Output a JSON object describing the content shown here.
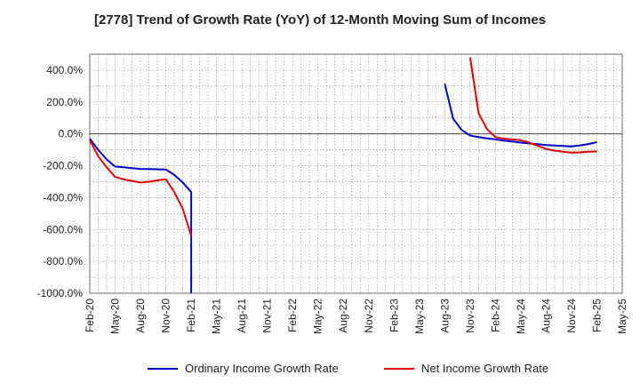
{
  "chart_data": {
    "type": "line",
    "title": "[2778]  Trend of Growth Rate (YoY) of 12-Month Moving Sum of Incomes",
    "xlabel": "",
    "ylabel": "",
    "ylim": [
      -1000,
      500
    ],
    "yticks": [
      400,
      200,
      0,
      -200,
      -400,
      -600,
      -800,
      -1000
    ],
    "ytick_labels": [
      "400.0%",
      "200.0%",
      "0.0%",
      "-200.0%",
      "-400.0%",
      "-600.0%",
      "-800.0%",
      "-1000.0%"
    ],
    "x_categories": [
      "Feb-20",
      "May-20",
      "Aug-20",
      "Nov-20",
      "Feb-21",
      "May-21",
      "Aug-21",
      "Nov-21",
      "Feb-22",
      "May-22",
      "Aug-22",
      "Nov-22",
      "Feb-23",
      "May-23",
      "Aug-23",
      "Nov-23",
      "Feb-24",
      "May-24",
      "Aug-24",
      "Nov-24",
      "Feb-25",
      "May-25"
    ],
    "grid": true,
    "legend_position": "bottom",
    "series": [
      {
        "name": "Ordinary Income Growth Rate",
        "color": "#0000cc",
        "segments": [
          {
            "x": [
              "Feb-20",
              "Mar-20",
              "Apr-20",
              "May-20",
              "Jun-20",
              "Jul-20",
              "Aug-20",
              "Sep-20",
              "Oct-20",
              "Nov-20",
              "Dec-20",
              "Jan-21",
              "Feb-21",
              "Feb-21"
            ],
            "y": [
              -30,
              -100,
              -160,
              -205,
              -210,
              -215,
              -220,
              -221,
              -222,
              -223,
              -258,
              -305,
              -365,
              -1000
            ]
          },
          {
            "x": [
              "Aug-23",
              "Sep-23",
              "Oct-23",
              "Nov-23",
              "Dec-23",
              "Jan-24",
              "Feb-24",
              "Mar-24",
              "Apr-24",
              "May-24",
              "Jun-24",
              "Jul-24",
              "Aug-24",
              "Sep-24",
              "Oct-24",
              "Nov-24",
              "Dec-24",
              "Jan-25",
              "Feb-25"
            ],
            "y": [
              315,
              95,
              25,
              -10,
              -20,
              -28,
              -35,
              -42,
              -48,
              -55,
              -60,
              -65,
              -70,
              -73,
              -76,
              -79,
              -72,
              -64,
              -52
            ]
          }
        ]
      },
      {
        "name": "Net Income Growth Rate",
        "color": "#e00000",
        "segments": [
          {
            "x": [
              "Feb-20",
              "Mar-20",
              "Apr-20",
              "May-20",
              "Jun-20",
              "Jul-20",
              "Aug-20",
              "Sep-20",
              "Oct-20",
              "Nov-20",
              "Dec-20",
              "Jan-21",
              "Feb-21"
            ],
            "y": [
              -40,
              -140,
              -210,
              -270,
              -285,
              -295,
              -305,
              -300,
              -292,
              -285,
              -365,
              -470,
              -640
            ]
          },
          {
            "x": [
              "Nov-23",
              "Dec-23",
              "Jan-24",
              "Feb-24",
              "Mar-24",
              "Apr-24",
              "May-24",
              "Jun-24",
              "Jul-24",
              "Aug-24",
              "Sep-24",
              "Oct-24",
              "Nov-24",
              "Dec-24",
              "Jan-25",
              "Feb-25"
            ],
            "y": [
              480,
              130,
              30,
              -20,
              -30,
              -35,
              -40,
              -55,
              -75,
              -95,
              -105,
              -112,
              -118,
              -116,
              -112,
              -110
            ]
          }
        ]
      }
    ]
  },
  "legend": {
    "items": [
      {
        "label": "Ordinary Income Growth Rate",
        "color": "#0000cc"
      },
      {
        "label": "Net Income Growth Rate",
        "color": "#e00000"
      }
    ]
  }
}
